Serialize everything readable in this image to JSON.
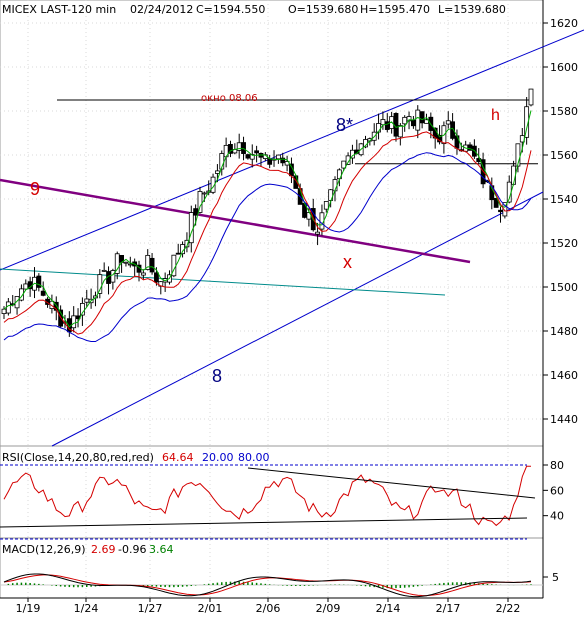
{
  "chart_data": [
    {
      "type": "candlestick",
      "header": {
        "title": "MICEX LAST-120 min",
        "date": "02/24/2012",
        "close": "C=1594.550",
        "open": "O=1539.680",
        "high": "H=1595.470",
        "low": "L=1539.680"
      },
      "ylim": [
        1420,
        1628
      ],
      "y_ticks": [
        1440,
        1460,
        1480,
        1500,
        1520,
        1540,
        1560,
        1580,
        1600,
        1620
      ],
      "x_ticks": [
        "1/19",
        "1/24",
        "1/27",
        "2/01",
        "2/06",
        "2/09",
        "2/14",
        "2/17",
        "2/22"
      ],
      "annotations": {
        "gap_label": "окно 08.06",
        "wave_9": "9",
        "wave_8_star": "8*",
        "wave_8": "8",
        "wave_x": "x",
        "wave_h": "h"
      },
      "close_path": [
        [
          0,
          1490
        ],
        [
          3,
          1498
        ],
        [
          6,
          1503
        ],
        [
          9,
          1497
        ],
        [
          12,
          1488
        ],
        [
          15,
          1482
        ],
        [
          18,
          1492
        ],
        [
          21,
          1500
        ],
        [
          24,
          1505
        ],
        [
          27,
          1514
        ],
        [
          30,
          1508
        ],
        [
          33,
          1510
        ],
        [
          36,
          1502
        ],
        [
          39,
          1512
        ],
        [
          42,
          1525
        ],
        [
          45,
          1540
        ],
        [
          48,
          1549
        ],
        [
          51,
          1563
        ],
        [
          54,
          1566
        ],
        [
          57,
          1561
        ],
        [
          60,
          1556
        ],
        [
          63,
          1560
        ],
        [
          66,
          1551
        ],
        [
          69,
          1534
        ],
        [
          72,
          1527
        ],
        [
          75,
          1540
        ],
        [
          78,
          1555
        ],
        [
          81,
          1565
        ],
        [
          84,
          1570
        ],
        [
          87,
          1574
        ],
        [
          90,
          1573
        ],
        [
          93,
          1578
        ],
        [
          96,
          1575
        ],
        [
          99,
          1568
        ],
        [
          102,
          1572
        ],
        [
          105,
          1565
        ],
        [
          108,
          1558
        ],
        [
          111,
          1545
        ],
        [
          114,
          1538
        ],
        [
          117,
          1552
        ],
        [
          120,
          1582
        ],
        [
          121,
          1594
        ]
      ],
      "moving_averages": [
        {
          "color": "#00aa00"
        },
        {
          "color": "#d40000"
        },
        {
          "color": "#0000cc"
        }
      ],
      "lines": {
        "channel_color": "#0000cc",
        "wave9_color": "#800080",
        "teal_color": "#008b8b",
        "gap_level": 1585,
        "support_level": 1556
      }
    },
    {
      "type": "line",
      "label": "RSI(Close,14,20,80,red,red)",
      "value": "64.64",
      "levels": [
        "20.00",
        "80.00"
      ],
      "y_ticks": [
        40,
        60,
        80
      ],
      "ylim": [
        25,
        85
      ],
      "color": "#d40000"
    },
    {
      "type": "histogram+line",
      "label": "MACD(12,26,9)",
      "values": [
        "2.69",
        "-0.96",
        "3.64"
      ],
      "value_colors": [
        "#d40000",
        "#000000",
        "#008000"
      ],
      "y_ticks": [
        5
      ],
      "colors": {
        "macd": "#000000",
        "signal": "#d40000",
        "hist": "#008000"
      }
    }
  ]
}
